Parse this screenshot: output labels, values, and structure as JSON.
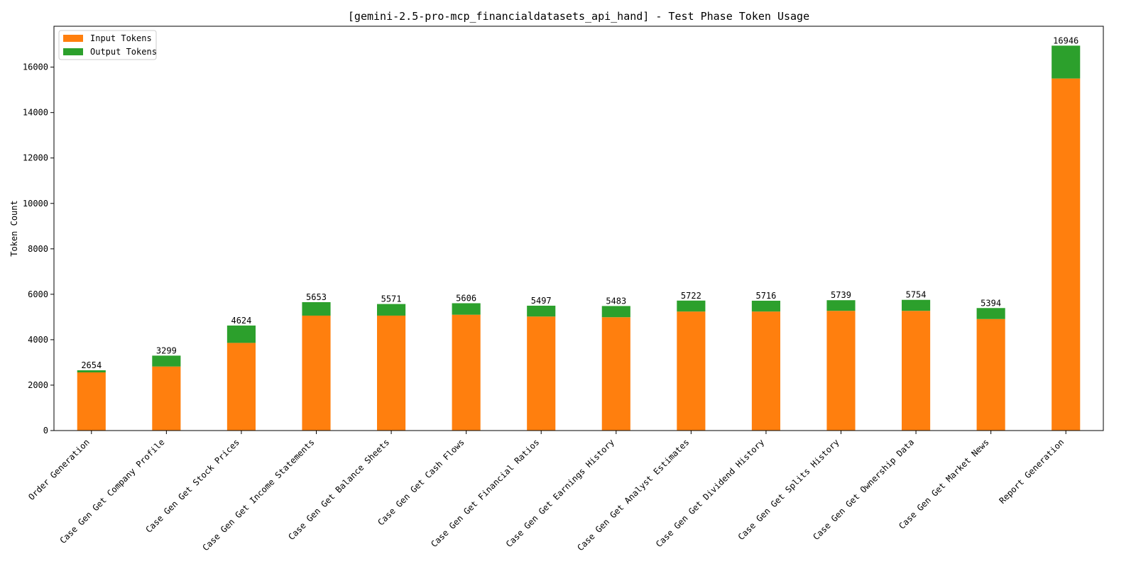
{
  "chart_data": {
    "type": "bar",
    "stacked": true,
    "title": "[gemini-2.5-pro-mcp_financialdatasets_api_hand] - Test Phase Token Usage",
    "xlabel": "",
    "ylabel": "Token Count",
    "ylim": [
      0,
      17800
    ],
    "yticks": [
      0,
      2000,
      4000,
      6000,
      8000,
      10000,
      12000,
      14000,
      16000
    ],
    "grid": false,
    "legend_position": "top-left",
    "categories": [
      "Order Generation",
      "Case Gen Get Company Profile",
      "Case Gen Get Stock Prices",
      "Case Gen Get Income Statements",
      "Case Gen Get Balance Sheets",
      "Case Gen Get Cash Flows",
      "Case Gen Get Financial Ratios",
      "Case Gen Get Earnings History",
      "Case Gen Get Analyst Estimates",
      "Case Gen Get Dividend History",
      "Case Gen Get Splits History",
      "Case Gen Get Ownership Data",
      "Case Gen Get Market News",
      "Report Generation"
    ],
    "series": [
      {
        "name": "Input Tokens",
        "color": "#ff7f0e",
        "values": [
          2560,
          2820,
          3860,
          5060,
          5060,
          5100,
          5020,
          4990,
          5240,
          5240,
          5270,
          5270,
          4910,
          15500
        ]
      },
      {
        "name": "Output Tokens",
        "color": "#2ca02c",
        "values": [
          94,
          479,
          764,
          593,
          511,
          506,
          477,
          493,
          482,
          476,
          469,
          484,
          484,
          1446
        ]
      }
    ],
    "totals": [
      2654,
      3299,
      4624,
      5653,
      5571,
      5606,
      5497,
      5483,
      5722,
      5716,
      5739,
      5754,
      5394,
      16946
    ]
  }
}
